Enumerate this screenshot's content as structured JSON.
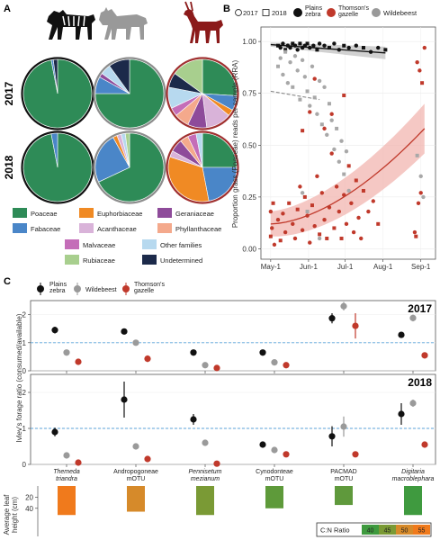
{
  "colors": {
    "Poaceae": "#2e8b57",
    "Fabaceae": "#4a86c8",
    "Euphorbiaceae": "#f08a24",
    "Acanthaceae": "#d9b3d9",
    "Geraniaceae": "#8e4b9a",
    "Phyllanthaceae": "#f4a98c",
    "Malvaceae": "#c46db8",
    "Rubiaceae": "#a8cf8e",
    "Other families": "#b7d9ef",
    "Undetermined": "#1c2a4a",
    "zebra": "#111111",
    "wildebeest": "#a0a0a0",
    "gazelle": "#c0392b"
  },
  "panelA": {
    "letter": "A",
    "icons": [
      "zebra-silhouette-icon",
      "wildebeest-silhouette-icon",
      "gazelle-silhouette-icon"
    ],
    "years": [
      "2017",
      "2018"
    ],
    "pies": [
      {
        "year": "2017",
        "animal": "zebra",
        "slices": {
          "Poaceae": 0.97,
          "Fabaceae": 0.01,
          "Undetermined": 0.02
        }
      },
      {
        "year": "2017",
        "animal": "wildebeest",
        "slices": {
          "Poaceae": 0.75,
          "Fabaceae": 0.08,
          "Geraniaceae": 0.02,
          "Other families": 0.05,
          "Undetermined": 0.1
        }
      },
      {
        "year": "2017",
        "animal": "gazelle",
        "slices": {
          "Poaceae": 0.26,
          "Fabaceae": 0.07,
          "Euphorbiaceae": 0.03,
          "Acanthaceae": 0.12,
          "Geraniaceae": 0.09,
          "Phyllanthaceae": 0.07,
          "Malvaceae": 0.04,
          "Other families": 0.1,
          "Undetermined": 0.07,
          "Rubiaceae": 0.15
        }
      },
      {
        "year": "2018",
        "animal": "zebra",
        "slices": {
          "Poaceae": 0.97,
          "Fabaceae": 0.03
        }
      },
      {
        "year": "2018",
        "animal": "wildebeest",
        "slices": {
          "Poaceae": 0.68,
          "Fabaceae": 0.24,
          "Euphorbiaceae": 0.02,
          "Acanthaceae": 0.02,
          "Other families": 0.02,
          "Rubiaceae": 0.02
        }
      },
      {
        "year": "2018",
        "animal": "gazelle",
        "slices": {
          "Poaceae": 0.25,
          "Fabaceae": 0.22,
          "Euphorbiaceae": 0.33,
          "Acanthaceae": 0.03,
          "Geraniaceae": 0.06,
          "Phyllanthaceae": 0.04,
          "Malvaceae": 0.04,
          "Other families": 0.03
        }
      }
    ],
    "legend": [
      "Poaceae",
      "Euphorbiaceae",
      "Geraniaceae",
      "Fabaceae",
      "Acanthaceae",
      "Phyllanthaceae",
      "Malvaceae",
      "Other families",
      "Rubiaceae",
      "Undetermined"
    ]
  },
  "panelB": {
    "letter": "B",
    "legend": {
      "year2017": "2017",
      "year2018": "2018",
      "zebra": "Plains zebra",
      "gazelle": "Thomson's gazelle",
      "wildebeest": "Wildebeest"
    },
    "ylabel": "Proportion grass (Poaceae) reads per sample (RRA)",
    "xticks": [
      "May-1",
      "Jun-1",
      "Jul-1",
      "Aug-1",
      "Sep-1"
    ],
    "yticks": [
      "0.00",
      "0.25",
      "0.50",
      "0.75",
      "1.00"
    ]
  },
  "panelC": {
    "letter": "C",
    "legend": {
      "zebra": "Plains zebra",
      "wildebeest": "Wildebeest",
      "gazelle": "Thomson's gazelle"
    },
    "ylabel": "Ivlev's forage ratio (consumed/available)",
    "years": [
      "2017",
      "2018"
    ],
    "categories": [
      {
        "line1": "Themeda",
        "line2": "triandra",
        "italic": true
      },
      {
        "line1": "Andropogoneae",
        "line2": "mOTU",
        "italic": false
      },
      {
        "line1": "Pennisetum",
        "line2": "mezianum",
        "italic": true
      },
      {
        "line1": "Cynodonteae",
        "line2": "mOTU",
        "italic": false
      },
      {
        "line1": "PACMAD",
        "line2": "mOTU",
        "italic": false
      },
      {
        "line1": "Digitaria",
        "line2": "macroblephara",
        "italic": true
      }
    ],
    "yticks": [
      "0",
      "1",
      "2"
    ],
    "leaf_label_line1": "Average leaf",
    "leaf_label_line2": "height (cm)",
    "leaf_ticks": [
      "20",
      "40"
    ],
    "cn_label": "C:N Ratio",
    "cn_ticks": [
      "40",
      "45",
      "50",
      "55"
    ]
  },
  "chart_data": [
    {
      "type": "scatter",
      "title": "",
      "xlabel": "",
      "ylabel": "Proportion grass (Poaceae) reads per sample (RRA)",
      "ylim": [
        0,
        1
      ],
      "xlim_days": [
        "May-1",
        "Sep-1"
      ],
      "series": [
        {
          "name": "Plains zebra",
          "points": [
            [
              6,
              0.98
            ],
            [
              8,
              0.97
            ],
            [
              10,
              0.99
            ],
            [
              12,
              0.96
            ],
            [
              14,
              0.98
            ],
            [
              16,
              0.97
            ],
            [
              18,
              0.99
            ],
            [
              20,
              0.98
            ],
            [
              22,
              0.96
            ],
            [
              24,
              0.99
            ],
            [
              26,
              0.97
            ],
            [
              28,
              0.98
            ],
            [
              30,
              0.99
            ],
            [
              32,
              0.97
            ],
            [
              35,
              0.98
            ],
            [
              38,
              0.96
            ],
            [
              40,
              0.99
            ],
            [
              44,
              0.98
            ],
            [
              48,
              0.97
            ],
            [
              52,
              0.99
            ],
            [
              56,
              0.96
            ],
            [
              60,
              0.98
            ],
            [
              64,
              0.97
            ],
            [
              70,
              0.98
            ],
            [
              76,
              0.97
            ],
            [
              82,
              0.95
            ],
            [
              88,
              0.97
            ],
            [
              94,
              0.96
            ]
          ]
        },
        {
          "name": "Wildebeest",
          "points": [
            [
              6,
              0.88
            ],
            [
              8,
              0.92
            ],
            [
              10,
              0.84
            ],
            [
              12,
              0.95
            ],
            [
              14,
              0.8
            ],
            [
              16,
              0.9
            ],
            [
              18,
              0.78
            ],
            [
              20,
              0.93
            ],
            [
              22,
              0.86
            ],
            [
              24,
              0.72
            ],
            [
              26,
              0.91
            ],
            [
              28,
              0.83
            ],
            [
              30,
              0.76
            ],
            [
              32,
              0.69
            ],
            [
              34,
              0.88
            ],
            [
              36,
              0.73
            ],
            [
              38,
              0.65
            ],
            [
              40,
              0.81
            ],
            [
              42,
              0.6
            ],
            [
              44,
              0.78
            ],
            [
              46,
              0.55
            ],
            [
              48,
              0.7
            ],
            [
              50,
              0.62
            ],
            [
              52,
              0.48
            ],
            [
              54,
              0.58
            ],
            [
              56,
              0.42
            ],
            [
              58,
              0.52
            ],
            [
              60,
              0.36
            ],
            [
              62,
              0.47
            ],
            [
              64,
              0.28
            ],
            [
              30,
              0.18
            ],
            [
              26,
              0.27
            ],
            [
              40,
              0.05
            ],
            [
              120,
              0.45
            ],
            [
              123,
              0.35
            ],
            [
              125,
              0.25
            ]
          ]
        },
        {
          "name": "Thomson's gazelle",
          "points": [
            [
              0,
              0.06
            ],
            [
              0,
              0.18
            ],
            [
              1,
              0.1
            ],
            [
              2,
              0.22
            ],
            [
              3,
              0.02
            ],
            [
              6,
              0.14
            ],
            [
              8,
              0.04
            ],
            [
              10,
              0.17
            ],
            [
              12,
              0.08
            ],
            [
              15,
              0.22
            ],
            [
              18,
              0.12
            ],
            [
              20,
              0.05
            ],
            [
              22,
              0.19
            ],
            [
              24,
              0.3
            ],
            [
              26,
              0.09
            ],
            [
              28,
              0.25
            ],
            [
              30,
              0.16
            ],
            [
              32,
              0.03
            ],
            [
              34,
              0.21
            ],
            [
              36,
              0.11
            ],
            [
              38,
              0.35
            ],
            [
              40,
              0.07
            ],
            [
              42,
              0.27
            ],
            [
              44,
              0.14
            ],
            [
              46,
              0.05
            ],
            [
              48,
              0.2
            ],
            [
              50,
              0.46
            ],
            [
              52,
              0.1
            ],
            [
              54,
              0.3
            ],
            [
              56,
              0.18
            ],
            [
              58,
              0.05
            ],
            [
              60,
              0.26
            ],
            [
              62,
              0.12
            ],
            [
              64,
              0.4
            ],
            [
              66,
              0.22
            ],
            [
              68,
              0.08
            ],
            [
              70,
              0.33
            ],
            [
              72,
              0.15
            ],
            [
              74,
              0.05
            ],
            [
              76,
              0.28
            ],
            [
              80,
              0.18
            ],
            [
              84,
              0.23
            ],
            [
              88,
              0.12
            ],
            [
              32,
              0.66
            ],
            [
              36,
              0.82
            ],
            [
              26,
              0.57
            ],
            [
              44,
              0.58
            ],
            [
              50,
              0.65
            ],
            [
              60,
              0.74
            ],
            [
              120,
              0.9
            ],
            [
              122,
              0.86
            ],
            [
              124,
              0.8
            ],
            [
              126,
              0.97
            ],
            [
              118,
              0.08
            ],
            [
              119,
              0.06
            ],
            [
              121,
              0.22
            ],
            [
              123,
              0.27
            ]
          ]
        }
      ],
      "fits": [
        {
          "series": "Plains zebra",
          "from": [
            0,
            0.985
          ],
          "to": [
            94,
            0.945
          ],
          "ci": 0.03
        },
        {
          "series": "Wildebeest",
          "from": [
            0,
            0.76
          ],
          "to": [
            40,
            0.72
          ],
          "dashed": true
        },
        {
          "series": "Thomson's gazelle",
          "from": [
            0,
            0.12
          ],
          "to": [
            126,
            0.58
          ],
          "ci_start": 0.06,
          "ci_end": 0.12
        }
      ]
    },
    {
      "type": "scatter",
      "title": "2017",
      "ylabel": "Ivlev's forage ratio (consumed/available)",
      "categories": [
        "Themeda triandra",
        "Andropogoneae mOTU",
        "Pennisetum mezianum",
        "Cynodonteae mOTU",
        "PACMAD mOTU",
        "Digitaria macroblephara"
      ],
      "ylim": [
        0,
        2.5
      ],
      "series": [
        {
          "name": "Plains zebra",
          "values": [
            1.45,
            1.4,
            0.65,
            0.65,
            1.87,
            1.28
          ],
          "err": [
            0.12,
            0.1,
            0.04,
            0.04,
            0.18,
            0.1
          ]
        },
        {
          "name": "Wildebeest",
          "values": [
            0.65,
            1.0,
            0.2,
            0.3,
            2.3,
            1.88
          ],
          "err": [
            0.05,
            0.06,
            0.03,
            0.03,
            0.15,
            0.12
          ]
        },
        {
          "name": "Thomson's gazelle",
          "values": [
            0.32,
            0.43,
            0.1,
            0.2,
            1.6,
            0.55
          ],
          "err": [
            0.06,
            0.12,
            0.03,
            0.03,
            0.45,
            0.1
          ]
        }
      ]
    },
    {
      "type": "scatter",
      "title": "2018",
      "ylabel": "Ivlev's forage ratio (consumed/available)",
      "categories": [
        "Themeda triandra",
        "Andropogoneae mOTU",
        "Pennisetum mezianum",
        "Cynodonteae mOTU",
        "PACMAD mOTU",
        "Digitaria macroblephara"
      ],
      "ylim": [
        0,
        2.5
      ],
      "series": [
        {
          "name": "Plains zebra",
          "values": [
            0.9,
            1.8,
            1.25,
            0.55,
            0.78,
            1.4
          ],
          "err": [
            0.12,
            0.5,
            0.15,
            0.05,
            0.28,
            0.3
          ]
        },
        {
          "name": "Wildebeest",
          "values": [
            0.25,
            0.5,
            0.6,
            0.4,
            1.05,
            1.7
          ],
          "err": [
            0.04,
            0.05,
            0.06,
            0.05,
            0.28,
            0.1
          ]
        },
        {
          "name": "Thomson's gazelle",
          "values": [
            0.05,
            0.15,
            0.02,
            0.28,
            0.28,
            0.55
          ],
          "err": [
            0.03,
            0.04,
            0.02,
            0.04,
            0.05,
            0.08
          ]
        }
      ]
    },
    {
      "type": "bar",
      "title": "",
      "ylabel": "Average leaf height (cm)",
      "categories": [
        "Themeda triandra",
        "Andropogoneae mOTU",
        "Pennisetum mezianum",
        "Cynodonteae mOTU",
        "PACMAD mOTU",
        "Digitaria macroblephara"
      ],
      "values": [
        52,
        46,
        52,
        40,
        34,
        52
      ],
      "cn_ratio": [
        55,
        51,
        46,
        44,
        44,
        40
      ],
      "bar_colors": [
        "#f07a1c",
        "#d68a2a",
        "#7a9a35",
        "#5e9a3a",
        "#5f993c",
        "#3f9a3f"
      ]
    }
  ]
}
